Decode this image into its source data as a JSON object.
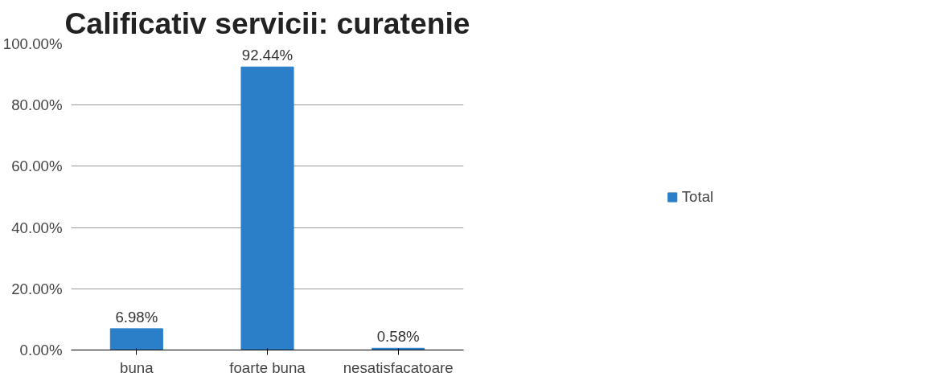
{
  "chart_data": {
    "type": "bar",
    "title": "Calificativ servicii: curatenie",
    "categories": [
      "buna",
      "foarte buna",
      "nesatisfacatoare"
    ],
    "series": [
      {
        "name": "Total",
        "color": "#2a7fc8",
        "values": [
          6.98,
          92.44,
          0.58
        ]
      }
    ],
    "value_labels": [
      "6.98%",
      "92.44%",
      "0.58%"
    ],
    "ylim": [
      0,
      100
    ],
    "yticks": [
      {
        "value": 0,
        "label": "0.00%"
      },
      {
        "value": 20,
        "label": "20.00%"
      },
      {
        "value": 40,
        "label": "40.00%"
      },
      {
        "value": 60,
        "label": "60.00%"
      },
      {
        "value": 80,
        "label": "80.00%"
      },
      {
        "value": 100,
        "label": "100.00%"
      }
    ],
    "grid": "y",
    "legend": "right"
  }
}
